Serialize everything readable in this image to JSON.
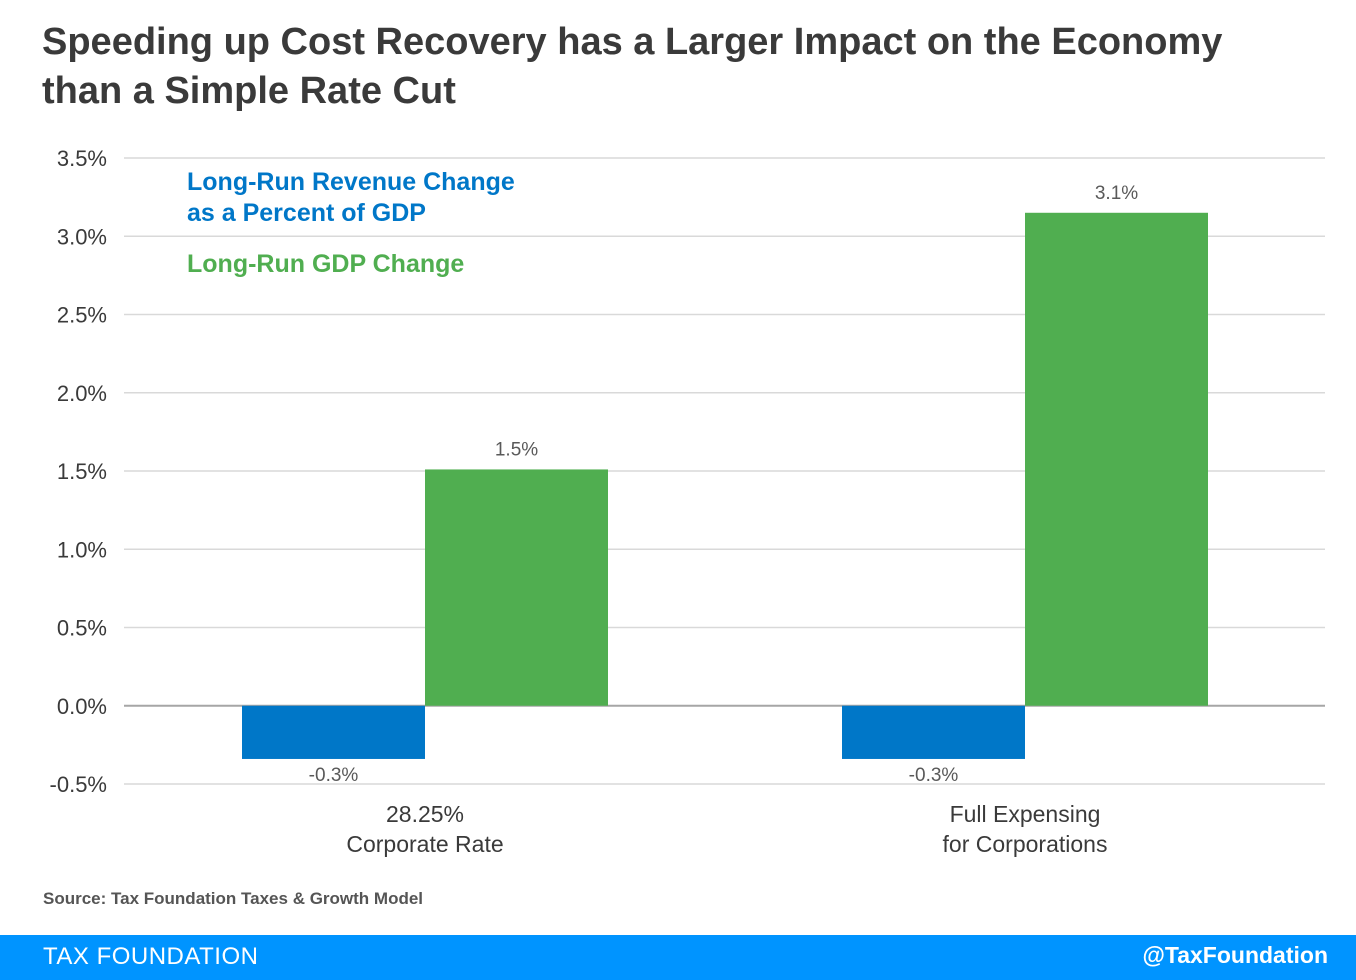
{
  "title_lines": [
    "Speeding up Cost Recovery has a Larger Impact on the Economy",
    "than a Simple Rate Cut"
  ],
  "chart_data": {
    "type": "bar",
    "categories": [
      [
        "28.25%",
        "Corporate Rate"
      ],
      [
        "Full Expensing",
        "for Corporations"
      ]
    ],
    "series": [
      {
        "name": "Long-Run Revenue Change as a Percent of GDP",
        "legend_lines": [
          "Long-Run Revenue Change",
          "as a Percent of GDP"
        ],
        "color": "#0077c8",
        "values": [
          -0.34,
          -0.34
        ],
        "labels": [
          "-0.3%",
          "-0.3%"
        ]
      },
      {
        "name": "Long-Run GDP Change",
        "legend_lines": [
          "Long-Run GDP Change"
        ],
        "color": "#50ae50",
        "values": [
          1.51,
          3.15
        ],
        "labels": [
          "1.5%",
          "3.1%"
        ]
      }
    ],
    "yticks": [
      "3.5%",
      "3.0%",
      "2.5%",
      "2.0%",
      "1.5%",
      "1.0%",
      "0.5%",
      "0.0%",
      "-0.5%"
    ],
    "ytick_values": [
      3.5,
      3.0,
      2.5,
      2.0,
      1.5,
      1.0,
      0.5,
      0.0,
      -0.5
    ],
    "ylim": [
      -0.5,
      3.5
    ],
    "grid": true,
    "legend_position": "top-left",
    "xlabel": "",
    "ylabel": ""
  },
  "source": "Source: Tax Foundation Taxes & Growth Model",
  "footer": {
    "brand": "TAX FOUNDATION",
    "handle": "@TaxFoundation"
  },
  "colors": {
    "grid": "#d9d9d9",
    "axis_text": "#3a3a3a",
    "label_text": "#595959",
    "footer_bg": "#0094ff"
  }
}
